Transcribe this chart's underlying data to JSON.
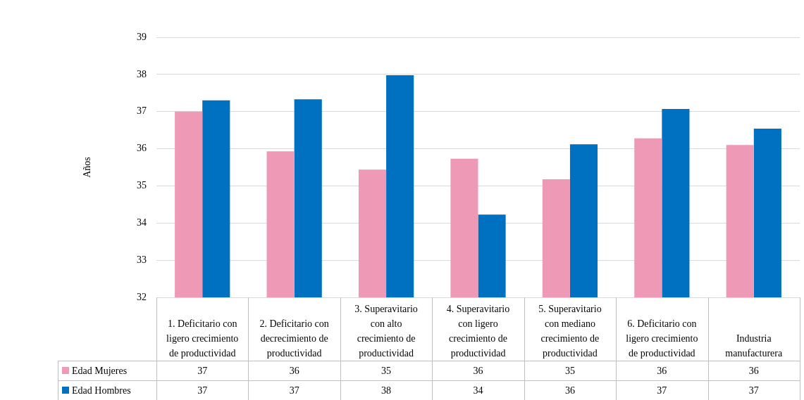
{
  "chart_data": {
    "type": "bar",
    "ylabel": "Años",
    "categories": [
      "1. Deficitario con ligero crecimiento de productividad",
      "2. Deficitario con decrecimiento de productividad",
      "3. Superavitario con alto crecimiento de productividad",
      "4. Superavitario con ligero crecimiento de productividad",
      "5. Superavitario con mediano crecimiento de productividad",
      "6. Deficitario con ligero crecimiento de productividad",
      "Industria manufacturera"
    ],
    "series": [
      {
        "name": "Edad Mujeres",
        "color": "#ee9ab7",
        "values": [
          37.0,
          35.93,
          35.44,
          35.73,
          35.18,
          36.28,
          36.1
        ],
        "value_labels": [
          "37",
          "36",
          "35",
          "36",
          "35",
          "36",
          "36"
        ]
      },
      {
        "name": "Edad Hombres",
        "color": "#0070c0",
        "values": [
          37.3,
          37.33,
          37.98,
          34.23,
          36.12,
          37.07,
          36.54
        ],
        "value_labels": [
          "37",
          "37",
          "38",
          "34",
          "36",
          "37",
          "37"
        ]
      }
    ],
    "ylim": [
      32,
      39
    ],
    "yticks": [
      32,
      33,
      34,
      35,
      36,
      37,
      38,
      39
    ],
    "grid": "y",
    "legend": "bottom"
  }
}
